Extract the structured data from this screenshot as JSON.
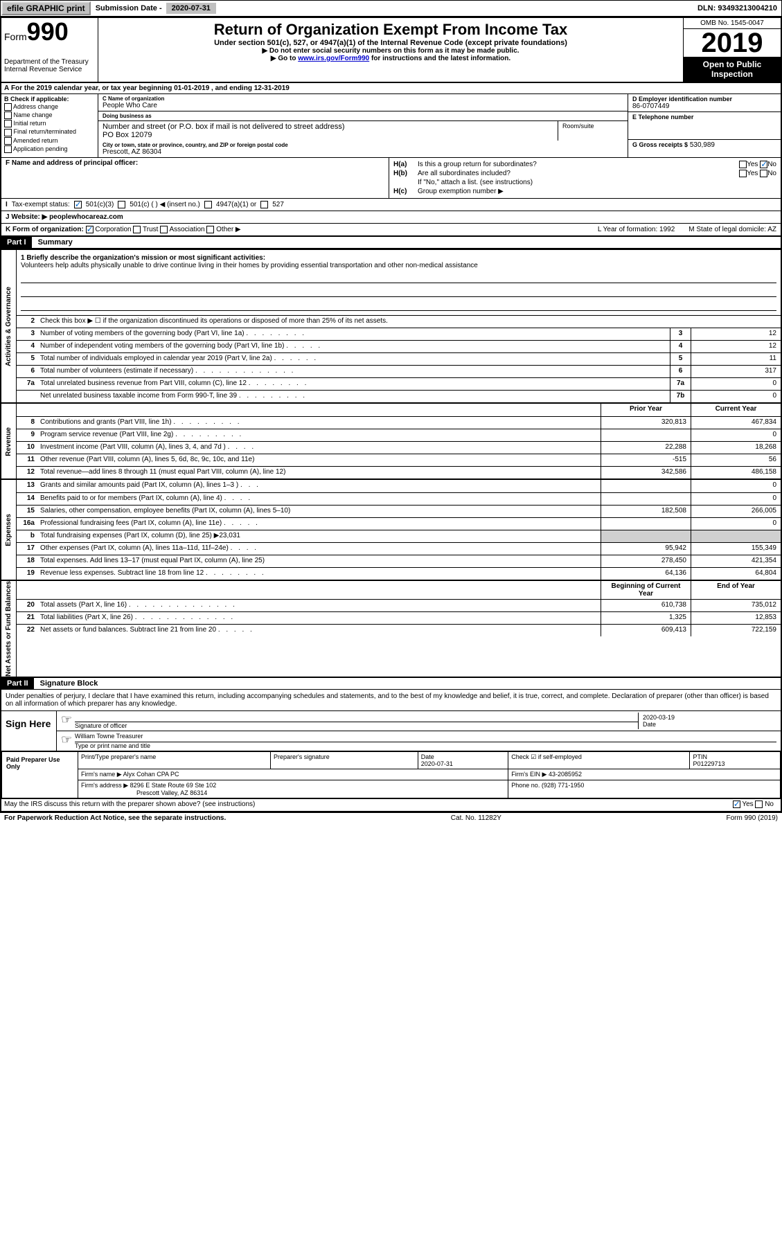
{
  "topbar": {
    "efile": "efile GRAPHIC print",
    "sub_label": "Submission Date - ",
    "sub_date": "2020-07-31",
    "dln": "DLN: 93493213004210"
  },
  "header": {
    "form_prefix": "Form",
    "form_number": "990",
    "dept": "Department of the Treasury\nInternal Revenue Service",
    "title": "Return of Organization Exempt From Income Tax",
    "subtitle": "Under section 501(c), 527, or 4947(a)(1) of the Internal Revenue Code (except private foundations)",
    "note1": "▶ Do not enter social security numbers on this form as it may be made public.",
    "note2_pre": "▶ Go to ",
    "note2_link": "www.irs.gov/Form990",
    "note2_post": " for instructions and the latest information.",
    "omb": "OMB No. 1545-0047",
    "year": "2019",
    "open": "Open to Public Inspection"
  },
  "row_a": "For the 2019 calendar year, or tax year beginning 01-01-2019    , and ending 12-31-2019",
  "section_b": {
    "header": "B Check if applicable:",
    "items": [
      "Address change",
      "Name change",
      "Initial return",
      "Final return/terminated",
      "Amended return",
      "Application pending"
    ]
  },
  "section_c": {
    "name_label": "C Name of organization",
    "name": "People Who Care",
    "dba_label": "Doing business as",
    "dba": "",
    "addr_label": "Number and street (or P.O. box if mail is not delivered to street address)",
    "room_label": "Room/suite",
    "addr": "PO Box 12079",
    "city_label": "City or town, state or province, country, and ZIP or foreign postal code",
    "city": "Prescott, AZ  86304"
  },
  "section_d": {
    "label": "D Employer identification number",
    "value": "86-0707449"
  },
  "section_e": {
    "label": "E Telephone number",
    "value": ""
  },
  "section_g": {
    "label": "G Gross receipts $",
    "value": "530,989"
  },
  "section_f": {
    "label": "F  Name and address of principal officer:",
    "value": ""
  },
  "section_h": {
    "a_label": "Is this a group return for subordinates?",
    "a_yes": "Yes",
    "a_no": "No",
    "b_label": "Are all subordinates included?",
    "b_note": "If \"No,\" attach a list. (see instructions)",
    "c_label": "Group exemption number ▶"
  },
  "row_i": {
    "label": "Tax-exempt status:",
    "opts": [
      "501(c)(3)",
      "501(c) (   ) ◀ (insert no.)",
      "4947(a)(1) or",
      "527"
    ]
  },
  "row_j": {
    "label": "J   Website: ▶ ",
    "value": "peoplewhocareaz.com"
  },
  "row_k": {
    "label": "K Form of organization:",
    "opts": [
      "Corporation",
      "Trust",
      "Association",
      "Other ▶"
    ],
    "l": "L Year of formation: 1992",
    "m": "M State of legal domicile: AZ"
  },
  "part1": {
    "header": "Part I",
    "title": "Summary",
    "mission_label": "1  Briefly describe the organization's mission or most significant activities:",
    "mission": "Volunteers help adults physically unable to drive continue living in their homes by providing essential transportation and other non-medical assistance",
    "line2": "Check this box ▶ ☐  if the organization discontinued its operations or disposed of more than 25% of its net assets.",
    "sections": [
      {
        "label": "Activities & Governance",
        "rows": [
          {
            "n": "3",
            "d": "Number of voting members of the governing body (Part VI, line 1a)",
            "dots": ". . . . . . . .",
            "box": "3",
            "py": "",
            "cy": "12",
            "single": true
          },
          {
            "n": "4",
            "d": "Number of independent voting members of the governing body (Part VI, line 1b)",
            "dots": ". . . . .",
            "box": "4",
            "py": "",
            "cy": "12",
            "single": true
          },
          {
            "n": "5",
            "d": "Total number of individuals employed in calendar year 2019 (Part V, line 2a)",
            "dots": ". . . . . .",
            "box": "5",
            "py": "",
            "cy": "11",
            "single": true
          },
          {
            "n": "6",
            "d": "Total number of volunteers (estimate if necessary)",
            "dots": ". . . . . . . . . . . . .",
            "box": "6",
            "py": "",
            "cy": "317",
            "single": true
          },
          {
            "n": "7a",
            "d": "Total unrelated business revenue from Part VIII, column (C), line 12",
            "dots": ". . . . . . . .",
            "box": "7a",
            "py": "",
            "cy": "0",
            "single": true
          },
          {
            "n": "",
            "d": "Net unrelated business taxable income from Form 990-T, line 39",
            "dots": ". . . . . . . . .",
            "box": "7b",
            "py": "",
            "cy": "0",
            "single": true
          }
        ]
      },
      {
        "label": "Revenue",
        "header": {
          "py": "Prior Year",
          "cy": "Current Year"
        },
        "rows": [
          {
            "n": "8",
            "d": "Contributions and grants (Part VIII, line 1h)",
            "dots": ". . . . . . . . .",
            "py": "320,813",
            "cy": "467,834"
          },
          {
            "n": "9",
            "d": "Program service revenue (Part VIII, line 2g)",
            "dots": ". . . . . . . . .",
            "py": "",
            "cy": "0"
          },
          {
            "n": "10",
            "d": "Investment income (Part VIII, column (A), lines 3, 4, and 7d )",
            "dots": ". . . .",
            "py": "22,288",
            "cy": "18,268"
          },
          {
            "n": "11",
            "d": "Other revenue (Part VIII, column (A), lines 5, 6d, 8c, 9c, 10c, and 11e)",
            "dots": "",
            "py": "-515",
            "cy": "56"
          },
          {
            "n": "12",
            "d": "Total revenue—add lines 8 through 11 (must equal Part VIII, column (A), line 12)",
            "dots": "",
            "py": "342,586",
            "cy": "486,158"
          }
        ]
      },
      {
        "label": "Expenses",
        "rows": [
          {
            "n": "13",
            "d": "Grants and similar amounts paid (Part IX, column (A), lines 1–3 )",
            "dots": ". . .",
            "py": "",
            "cy": "0"
          },
          {
            "n": "14",
            "d": "Benefits paid to or for members (Part IX, column (A), line 4)",
            "dots": ". . . .",
            "py": "",
            "cy": "0"
          },
          {
            "n": "15",
            "d": "Salaries, other compensation, employee benefits (Part IX, column (A), lines 5–10)",
            "dots": "",
            "py": "182,508",
            "cy": "266,005"
          },
          {
            "n": "16a",
            "d": "Professional fundraising fees (Part IX, column (A), line 11e)",
            "dots": ". . . . .",
            "py": "",
            "cy": "0"
          },
          {
            "n": "b",
            "d": "Total fundraising expenses (Part IX, column (D), line 25) ▶23,031",
            "dots": "",
            "py": "grey",
            "cy": "grey",
            "greyrow": true
          },
          {
            "n": "17",
            "d": "Other expenses (Part IX, column (A), lines 11a–11d, 11f–24e)",
            "dots": ". . . .",
            "py": "95,942",
            "cy": "155,349"
          },
          {
            "n": "18",
            "d": "Total expenses. Add lines 13–17 (must equal Part IX, column (A), line 25)",
            "dots": "",
            "py": "278,450",
            "cy": "421,354"
          },
          {
            "n": "19",
            "d": "Revenue less expenses. Subtract line 18 from line 12",
            "dots": ". . . . . . . .",
            "py": "64,136",
            "cy": "64,804"
          }
        ]
      },
      {
        "label": "Net Assets or Fund Balances",
        "header": {
          "py": "Beginning of Current Year",
          "cy": "End of Year"
        },
        "rows": [
          {
            "n": "20",
            "d": "Total assets (Part X, line 16)",
            "dots": ". . . . . . . . . . . . . .",
            "py": "610,738",
            "cy": "735,012"
          },
          {
            "n": "21",
            "d": "Total liabilities (Part X, line 26)",
            "dots": ". . . . . . . . . . . . .",
            "py": "1,325",
            "cy": "12,853"
          },
          {
            "n": "22",
            "d": "Net assets or fund balances. Subtract line 21 from line 20",
            "dots": ". . . . .",
            "py": "609,413",
            "cy": "722,159"
          }
        ]
      }
    ]
  },
  "part2": {
    "header": "Part II",
    "title": "Signature Block",
    "intro": "Under penalties of perjury, I declare that I have examined this return, including accompanying schedules and statements, and to the best of my knowledge and belief, it is true, correct, and complete. Declaration of preparer (other than officer) is based on all information of which preparer has any knowledge.",
    "sign_here": "Sign Here",
    "sig_label": "Signature of officer",
    "sig_date_label": "Date",
    "sig_date": "2020-03-19",
    "name_label": "Type or print name and title",
    "name": "William Towne  Treasurer",
    "prep": {
      "left": "Paid Preparer Use Only",
      "h1": "Print/Type preparer's name",
      "h2": "Preparer's signature",
      "h3": "Date",
      "h3v": "2020-07-31",
      "h4": "Check ☑ if self-employed",
      "h5": "PTIN",
      "h5v": "P01229713",
      "firm_label": "Firm's name    ▶",
      "firm": "Alyx Cohan CPA PC",
      "ein_label": "Firm's EIN ▶",
      "ein": "43-2085952",
      "addr_label": "Firm's address ▶",
      "addr1": "8296 E State Route 69 Ste 102",
      "addr2": "Prescott Valley, AZ  86314",
      "phone_label": "Phone no.",
      "phone": "(928) 771-1950"
    },
    "discuss": "May the IRS discuss this return with the preparer shown above? (see instructions)",
    "discuss_yes": "Yes",
    "discuss_no": "No"
  },
  "footer": {
    "left": "For Paperwork Reduction Act Notice, see the separate instructions.",
    "mid": "Cat. No. 11282Y",
    "right": "Form 990 (2019)"
  }
}
